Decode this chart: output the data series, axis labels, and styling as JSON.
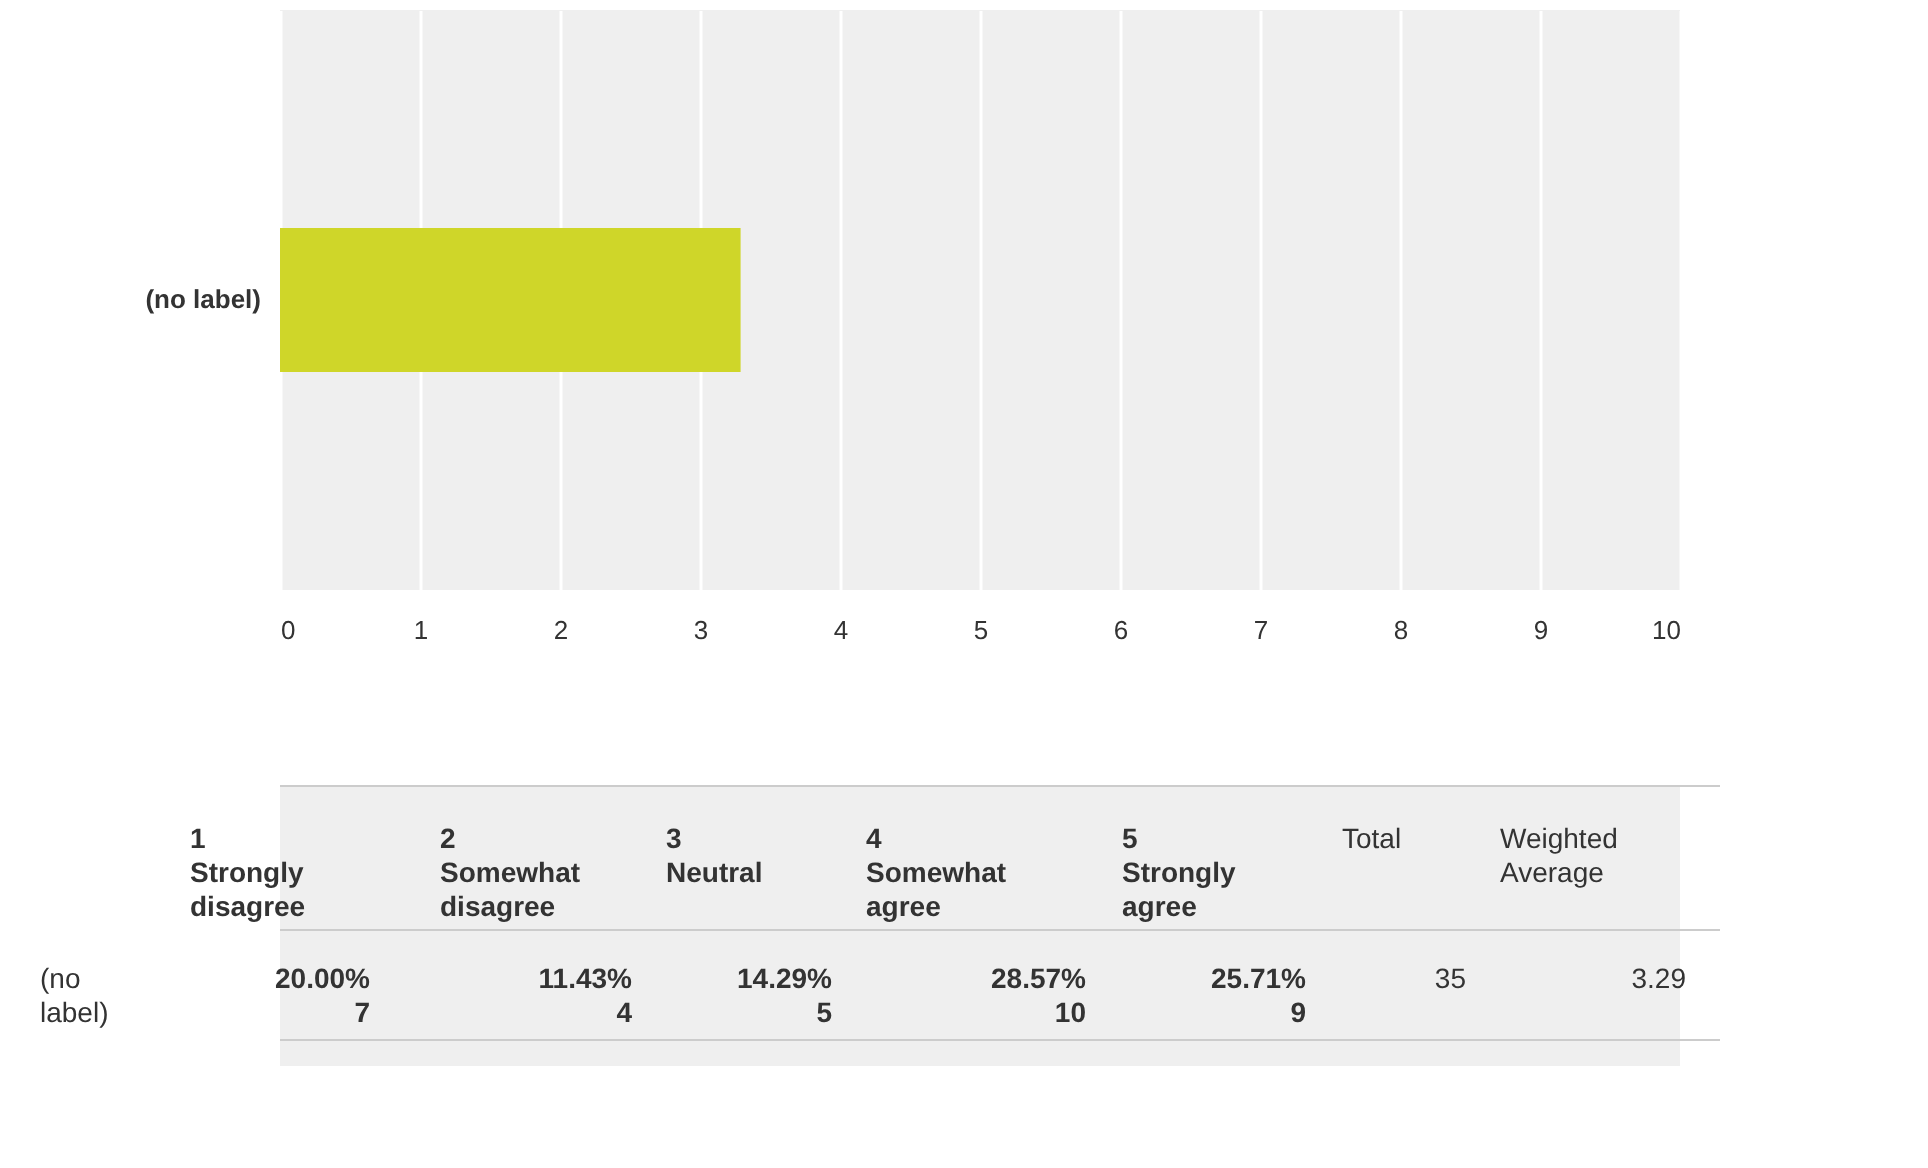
{
  "chart_data": [
    {
      "type": "bar",
      "orientation": "horizontal",
      "categories": [
        "(no label)"
      ],
      "values": [
        3.29
      ],
      "color": "#cfd629",
      "xlim": [
        0,
        10
      ],
      "xticks": [
        0,
        1,
        2,
        3,
        4,
        5,
        6,
        7,
        8,
        9,
        10
      ],
      "grid": "x"
    },
    {
      "type": "other",
      "annotations": [
        "1 Strongly disagree",
        "2 Somewhat disagree",
        "3 Neutral",
        "4 Somewhat agree",
        "5 Strongly agree",
        "Total",
        "Weighted Average",
        "(no label)",
        "20.00% 7",
        "11.43% 4",
        "14.29% 5",
        "28.57% 10",
        "25.71% 9",
        "35",
        "3.29"
      ]
    }
  ]
}
